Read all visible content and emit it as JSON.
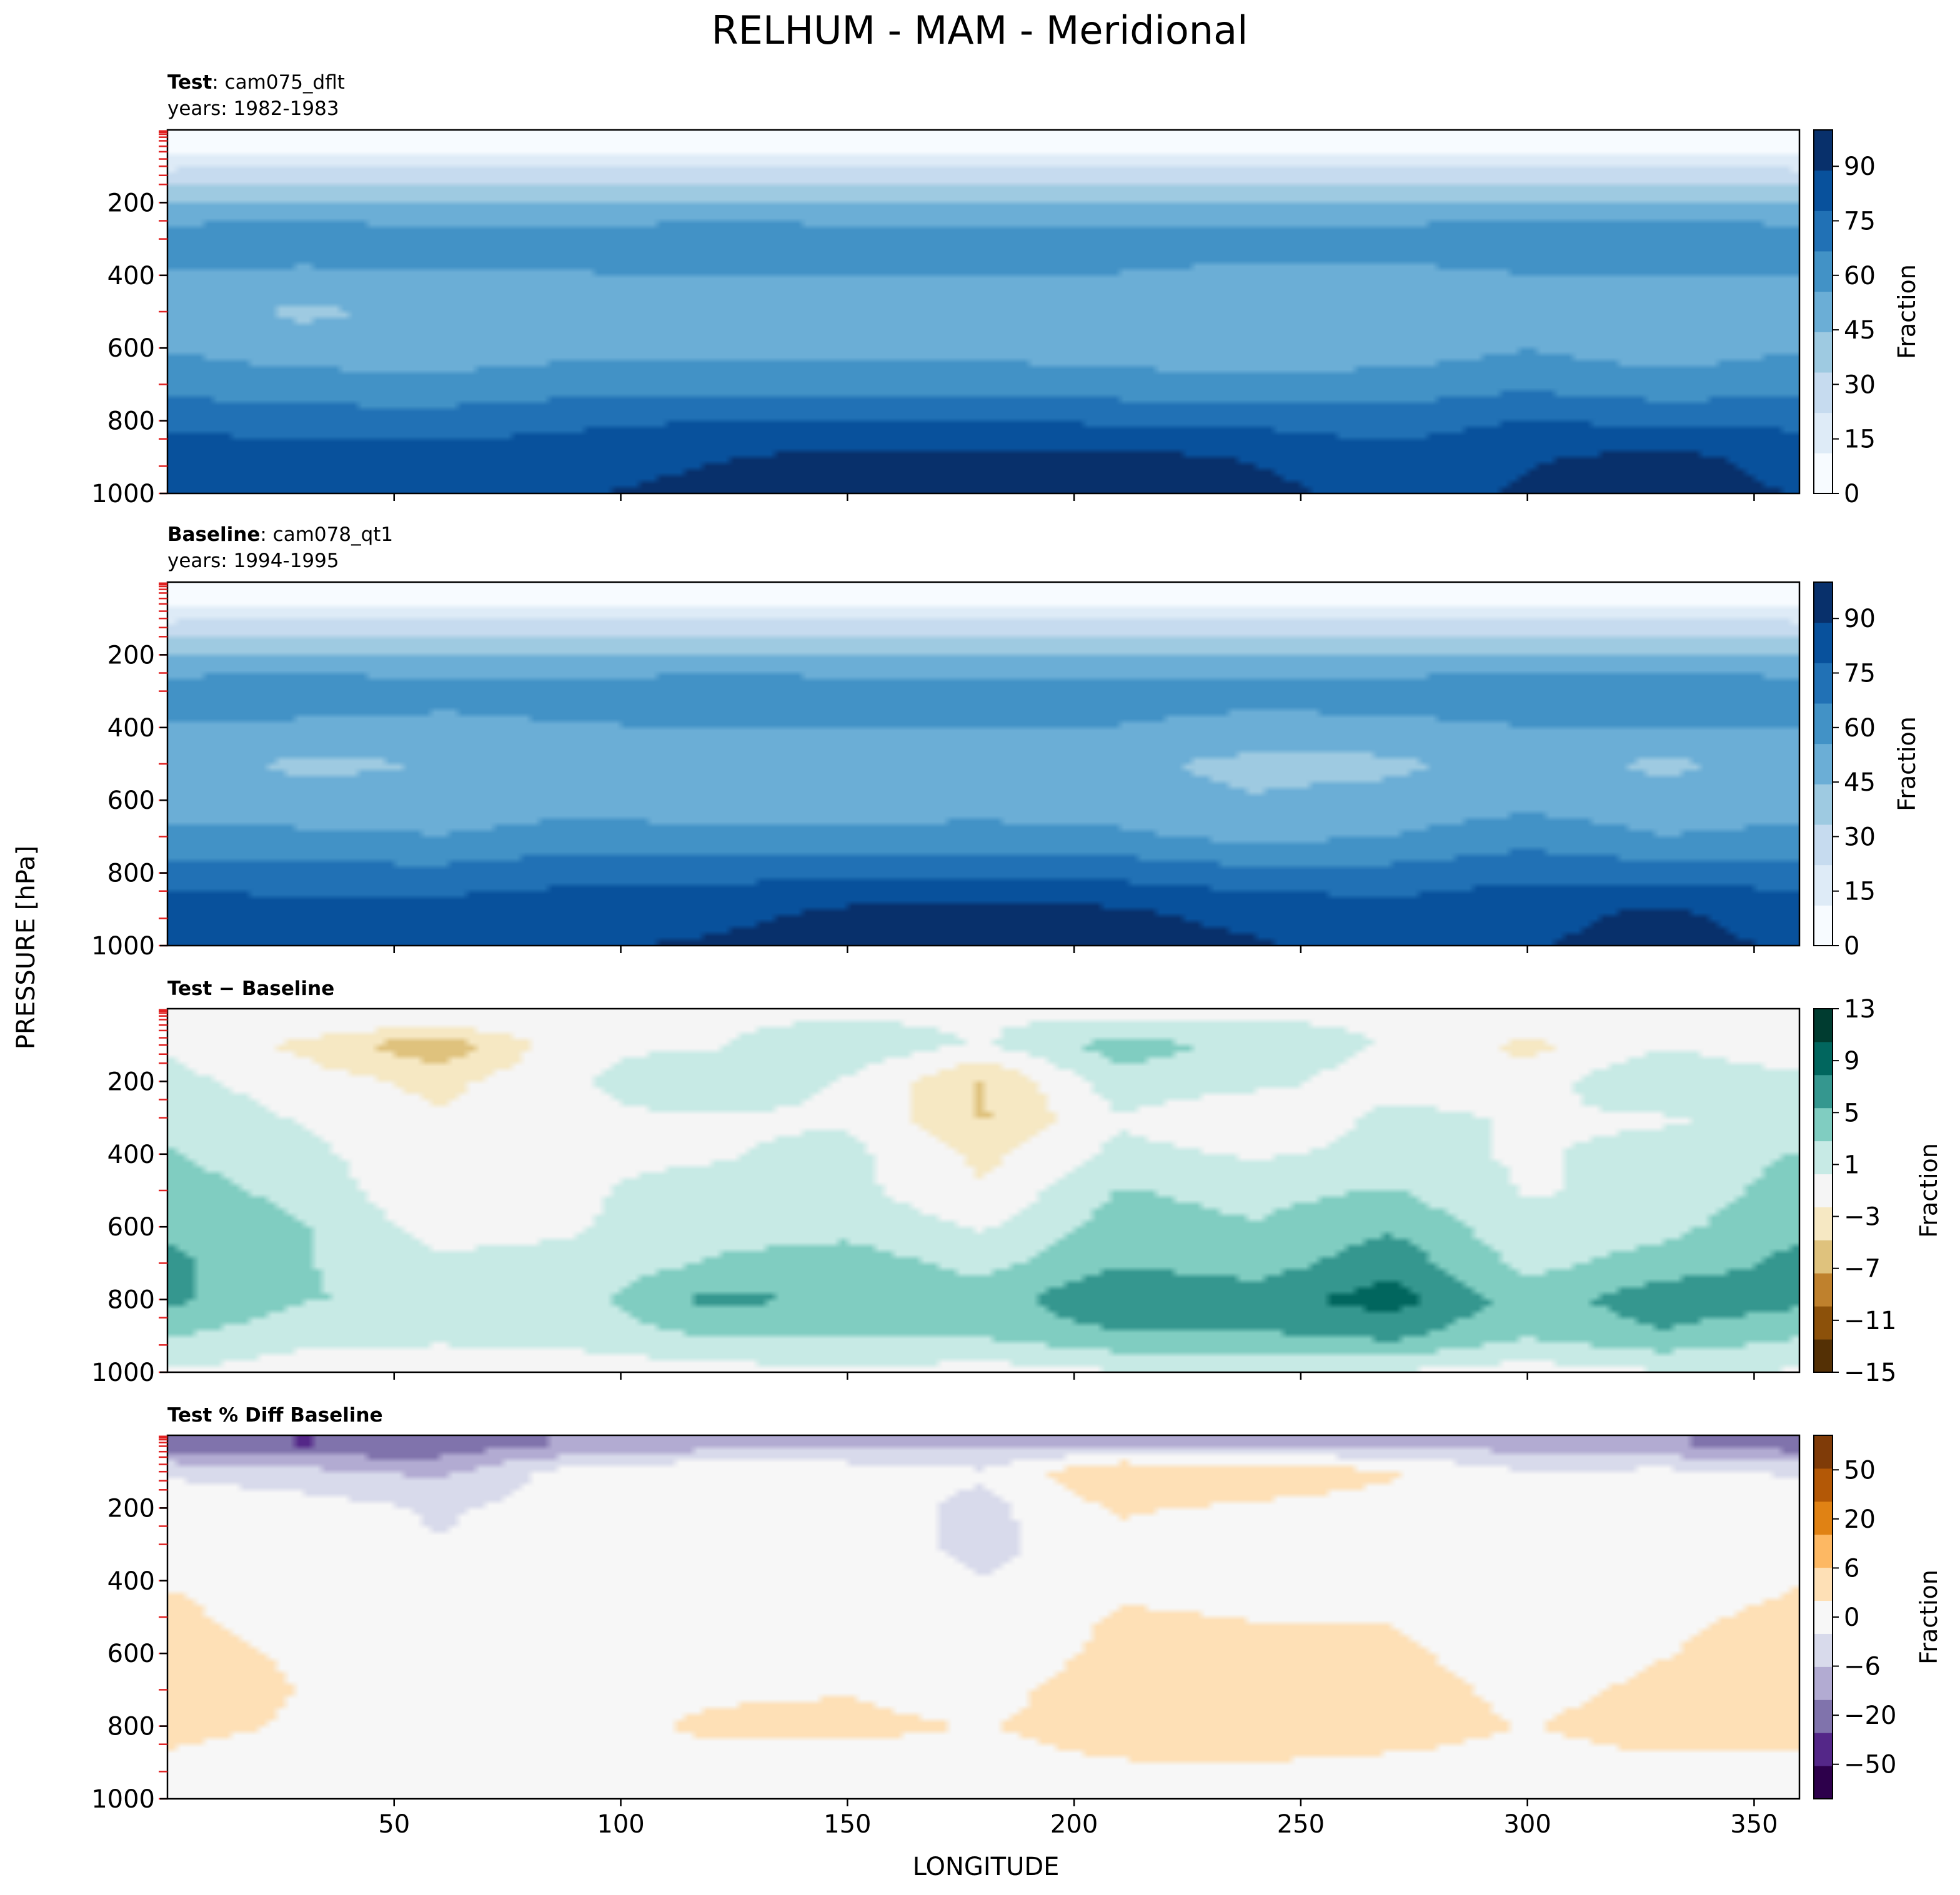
{
  "figure": {
    "title": "RELHUM - MAM - Meridional",
    "ylabel": "PRESSURE [hPa]",
    "xlabel": "LONGITUDE"
  },
  "panels": [
    {
      "label_bold": "Test",
      "label_rest": ": cam075_dflt",
      "years": "years: 1982-1983",
      "cbar_label": "Fraction",
      "cmap": [
        "#f7fbff",
        "#deebf7",
        "#c6dbef",
        "#9ecae1",
        "#6baed6",
        "#4292c6",
        "#2171b5",
        "#08519c",
        "#08306b"
      ],
      "cbar_ticks": [
        "0",
        "15",
        "30",
        "45",
        "60",
        "75",
        "90"
      ],
      "cbar_range": [
        0,
        100
      ]
    },
    {
      "label_bold": "Baseline",
      "label_rest": ": cam078_qt1",
      "years": "years: 1994-1995",
      "cbar_label": "Fraction",
      "cmap": [
        "#f7fbff",
        "#deebf7",
        "#c6dbef",
        "#9ecae1",
        "#6baed6",
        "#4292c6",
        "#2171b5",
        "#08519c",
        "#08306b"
      ],
      "cbar_ticks": [
        "0",
        "15",
        "30",
        "45",
        "60",
        "75",
        "90"
      ],
      "cbar_range": [
        0,
        100
      ]
    },
    {
      "label_bold": "Test − Baseline",
      "label_rest": "",
      "years": "",
      "cbar_label": "Fraction",
      "cmap": [
        "#543005",
        "#8c510a",
        "#bf812d",
        "#dfc27d",
        "#f6e8c3",
        "#f5f5f5",
        "#c7eae5",
        "#80cdc1",
        "#35978f",
        "#01665e",
        "#003c30"
      ],
      "cbar_ticks": [
        "−15",
        "−11",
        "−7",
        "−3",
        "1",
        "5",
        "9",
        "13"
      ],
      "cbar_range": [
        -15,
        13
      ]
    },
    {
      "label_bold": "Test % Diff Baseline",
      "label_rest": "",
      "years": "",
      "cbar_label": "Fraction",
      "cmap": [
        "#2d004b",
        "#542788",
        "#8073ac",
        "#b2abd2",
        "#d8daeb",
        "#f7f7f7",
        "#fee0b6",
        "#fdb863",
        "#e08214",
        "#b35806",
        "#7f3b08"
      ],
      "cbar_ticks": [
        "−50",
        "−20",
        "−6",
        "0",
        "6",
        "20",
        "50"
      ],
      "cbar_range": [
        -70,
        70
      ]
    }
  ],
  "chart_data": [
    {
      "type": "heatmap",
      "title": "Test: cam075_dflt",
      "subtitle": "years: 1982-1983",
      "xlabel": "LONGITUDE",
      "ylabel": "PRESSURE [hPa]",
      "xlim": [
        0,
        360
      ],
      "ylim": [
        1000,
        0
      ],
      "x": [
        0,
        30,
        60,
        90,
        120,
        150,
        180,
        210,
        240,
        270,
        300,
        330,
        360
      ],
      "y": [
        25,
        100,
        200,
        300,
        400,
        500,
        600,
        700,
        800,
        900,
        1000
      ],
      "z": [
        [
          2,
          2,
          2,
          2,
          2,
          2,
          2,
          2,
          2,
          2,
          2,
          2,
          2
        ],
        [
          20,
          22,
          22,
          22,
          22,
          22,
          22,
          22,
          22,
          22,
          22,
          22,
          20
        ],
        [
          45,
          45,
          45,
          45,
          45,
          45,
          45,
          45,
          45,
          45,
          45,
          45,
          45
        ],
        [
          62,
          66,
          60,
          60,
          65,
          62,
          62,
          62,
          62,
          62,
          66,
          66,
          62
        ],
        [
          55,
          52,
          55,
          55,
          56,
          55,
          55,
          55,
          52,
          52,
          55,
          55,
          55
        ],
        [
          50,
          42,
          48,
          50,
          48,
          48,
          48,
          46,
          44,
          44,
          50,
          44,
          50
        ],
        [
          55,
          50,
          50,
          52,
          52,
          52,
          52,
          50,
          50,
          50,
          55,
          50,
          55
        ],
        [
          62,
          60,
          58,
          62,
          62,
          62,
          62,
          60,
          58,
          60,
          64,
          60,
          62
        ],
        [
          75,
          72,
          72,
          75,
          78,
          78,
          78,
          76,
          75,
          72,
          78,
          75,
          75
        ],
        [
          85,
          82,
          82,
          85,
          88,
          92,
          92,
          92,
          88,
          82,
          88,
          92,
          85
        ],
        [
          88,
          85,
          85,
          88,
          92,
          96,
          98,
          96,
          92,
          85,
          90,
          95,
          88
        ]
      ],
      "colorbar": {
        "label": "Fraction",
        "ticks": [
          0,
          15,
          30,
          45,
          60,
          75,
          90
        ],
        "range": [
          0,
          100
        ]
      }
    },
    {
      "type": "heatmap",
      "title": "Baseline: cam078_qt1",
      "subtitle": "years: 1994-1995",
      "xlabel": "LONGITUDE",
      "ylabel": "PRESSURE [hPa]",
      "xlim": [
        0,
        360
      ],
      "ylim": [
        1000,
        0
      ],
      "x": [
        0,
        30,
        60,
        90,
        120,
        150,
        180,
        210,
        240,
        270,
        300,
        330,
        360
      ],
      "y": [
        25,
        100,
        200,
        300,
        400,
        500,
        600,
        700,
        800,
        900,
        1000
      ],
      "z": [
        [
          2,
          2,
          2,
          2,
          2,
          2,
          2,
          2,
          2,
          2,
          2,
          2,
          2
        ],
        [
          20,
          22,
          22,
          22,
          22,
          22,
          22,
          22,
          22,
          22,
          22,
          22,
          20
        ],
        [
          45,
          45,
          45,
          45,
          45,
          45,
          45,
          45,
          45,
          45,
          45,
          45,
          45
        ],
        [
          62,
          66,
          60,
          60,
          65,
          62,
          62,
          62,
          62,
          62,
          66,
          66,
          62
        ],
        [
          55,
          52,
          52,
          55,
          55,
          55,
          55,
          55,
          50,
          52,
          55,
          55,
          55
        ],
        [
          50,
          42,
          45,
          50,
          45,
          48,
          48,
          46,
          42,
          42,
          50,
          42,
          50
        ],
        [
          52,
          48,
          48,
          52,
          50,
          50,
          50,
          48,
          45,
          48,
          52,
          48,
          52
        ],
        [
          58,
          58,
          56,
          60,
          58,
          58,
          60,
          58,
          52,
          56,
          62,
          56,
          58
        ],
        [
          72,
          70,
          70,
          74,
          74,
          76,
          76,
          74,
          70,
          70,
          75,
          72,
          72
        ],
        [
          84,
          82,
          82,
          85,
          86,
          90,
          92,
          90,
          85,
          82,
          86,
          90,
          84
        ],
        [
          87,
          85,
          85,
          88,
          90,
          94,
          96,
          94,
          90,
          85,
          88,
          93,
          87
        ]
      ],
      "colorbar": {
        "label": "Fraction",
        "ticks": [
          0,
          15,
          30,
          45,
          60,
          75,
          90
        ],
        "range": [
          0,
          100
        ]
      }
    },
    {
      "type": "heatmap",
      "title": "Test − Baseline",
      "xlabel": "LONGITUDE",
      "ylabel": "PRESSURE [hPa]",
      "xlim": [
        0,
        360
      ],
      "ylim": [
        1000,
        0
      ],
      "x": [
        0,
        30,
        60,
        90,
        120,
        150,
        180,
        210,
        240,
        270,
        300,
        330,
        360
      ],
      "y": [
        25,
        100,
        200,
        300,
        400,
        500,
        600,
        700,
        800,
        900,
        1000
      ],
      "z": [
        [
          0,
          0,
          0,
          0,
          0,
          0,
          0,
          0,
          0,
          0,
          0,
          0,
          0
        ],
        [
          0,
          -3,
          -7,
          0,
          0,
          2,
          0,
          4,
          2,
          0,
          -3,
          0,
          -2
        ],
        [
          1,
          -1,
          -3,
          0,
          2,
          0,
          -5,
          2,
          1,
          -1,
          -1,
          3,
          1
        ],
        [
          2,
          0,
          -2,
          0,
          0,
          0,
          -5,
          0,
          -2,
          1,
          0,
          0,
          1
        ],
        [
          3,
          1,
          -2,
          0,
          0,
          1,
          -3,
          1,
          0,
          1,
          0,
          1,
          3
        ],
        [
          4,
          2,
          -2,
          0,
          1,
          1,
          -2,
          3,
          2,
          3,
          0,
          1,
          4
        ],
        [
          5,
          3,
          -1,
          0,
          2,
          2,
          0,
          4,
          3,
          5,
          1,
          2,
          5
        ],
        [
          6,
          3,
          1,
          1,
          3,
          4,
          2,
          5,
          4,
          7,
          2,
          4,
          6
        ],
        [
          6,
          3,
          2,
          2,
          6,
          5,
          4,
          8,
          7,
          9,
          4,
          7,
          6
        ],
        [
          3,
          1,
          1,
          1,
          3,
          3,
          3,
          5,
          5,
          6,
          3,
          5,
          3
        ],
        [
          0,
          -1,
          -2,
          -1,
          -1,
          0,
          -1,
          0,
          0,
          0,
          -1,
          0,
          0
        ]
      ],
      "colorbar": {
        "label": "Fraction",
        "ticks": [
          -15,
          -11,
          -7,
          -3,
          1,
          5,
          9,
          13
        ],
        "range": [
          -15,
          13
        ]
      }
    },
    {
      "type": "heatmap",
      "title": "Test % Diff Baseline",
      "xlabel": "LONGITUDE",
      "ylabel": "PRESSURE [hPa]",
      "xlim": [
        0,
        360
      ],
      "ylim": [
        1000,
        0
      ],
      "x": [
        0,
        30,
        60,
        90,
        120,
        150,
        180,
        210,
        240,
        270,
        300,
        330,
        360
      ],
      "y": [
        25,
        100,
        200,
        300,
        400,
        500,
        600,
        700,
        800,
        900,
        1000
      ],
      "z": [
        [
          -40,
          -45,
          -40,
          -30,
          -25,
          -25,
          -20,
          -20,
          -20,
          -20,
          -25,
          -30,
          -40
        ],
        [
          -8,
          -15,
          -22,
          0,
          5,
          3,
          -5,
          20,
          15,
          8,
          -6,
          -3,
          -8
        ],
        [
          2,
          0,
          -8,
          0,
          4,
          0,
          -10,
          8,
          4,
          2,
          -2,
          3,
          2
        ],
        [
          4,
          1,
          -6,
          0,
          1,
          0,
          -10,
          2,
          -1,
          3,
          0,
          1,
          4
        ],
        [
          6,
          2,
          -5,
          0,
          1,
          2,
          -6,
          3,
          0,
          4,
          0,
          3,
          6
        ],
        [
          8,
          3,
          -4,
          0,
          2,
          3,
          -5,
          8,
          6,
          6,
          0,
          5,
          8
        ],
        [
          10,
          5,
          -3,
          0,
          3,
          4,
          -2,
          10,
          9,
          8,
          2,
          6,
          10
        ],
        [
          12,
          6,
          0,
          2,
          5,
          6,
          3,
          12,
          12,
          10,
          4,
          8,
          12
        ],
        [
          10,
          5,
          2,
          3,
          8,
          8,
          6,
          10,
          14,
          10,
          6,
          10,
          10
        ],
        [
          4,
          1,
          1,
          2,
          4,
          4,
          4,
          6,
          6,
          5,
          4,
          5,
          4
        ],
        [
          0,
          -1,
          -2,
          -1,
          -1,
          0,
          -1,
          0,
          0,
          0,
          -1,
          0,
          0
        ]
      ],
      "colorbar": {
        "label": "Fraction",
        "ticks": [
          -50,
          -20,
          -6,
          0,
          6,
          20,
          50
        ],
        "range": [
          -70,
          70
        ]
      }
    }
  ]
}
